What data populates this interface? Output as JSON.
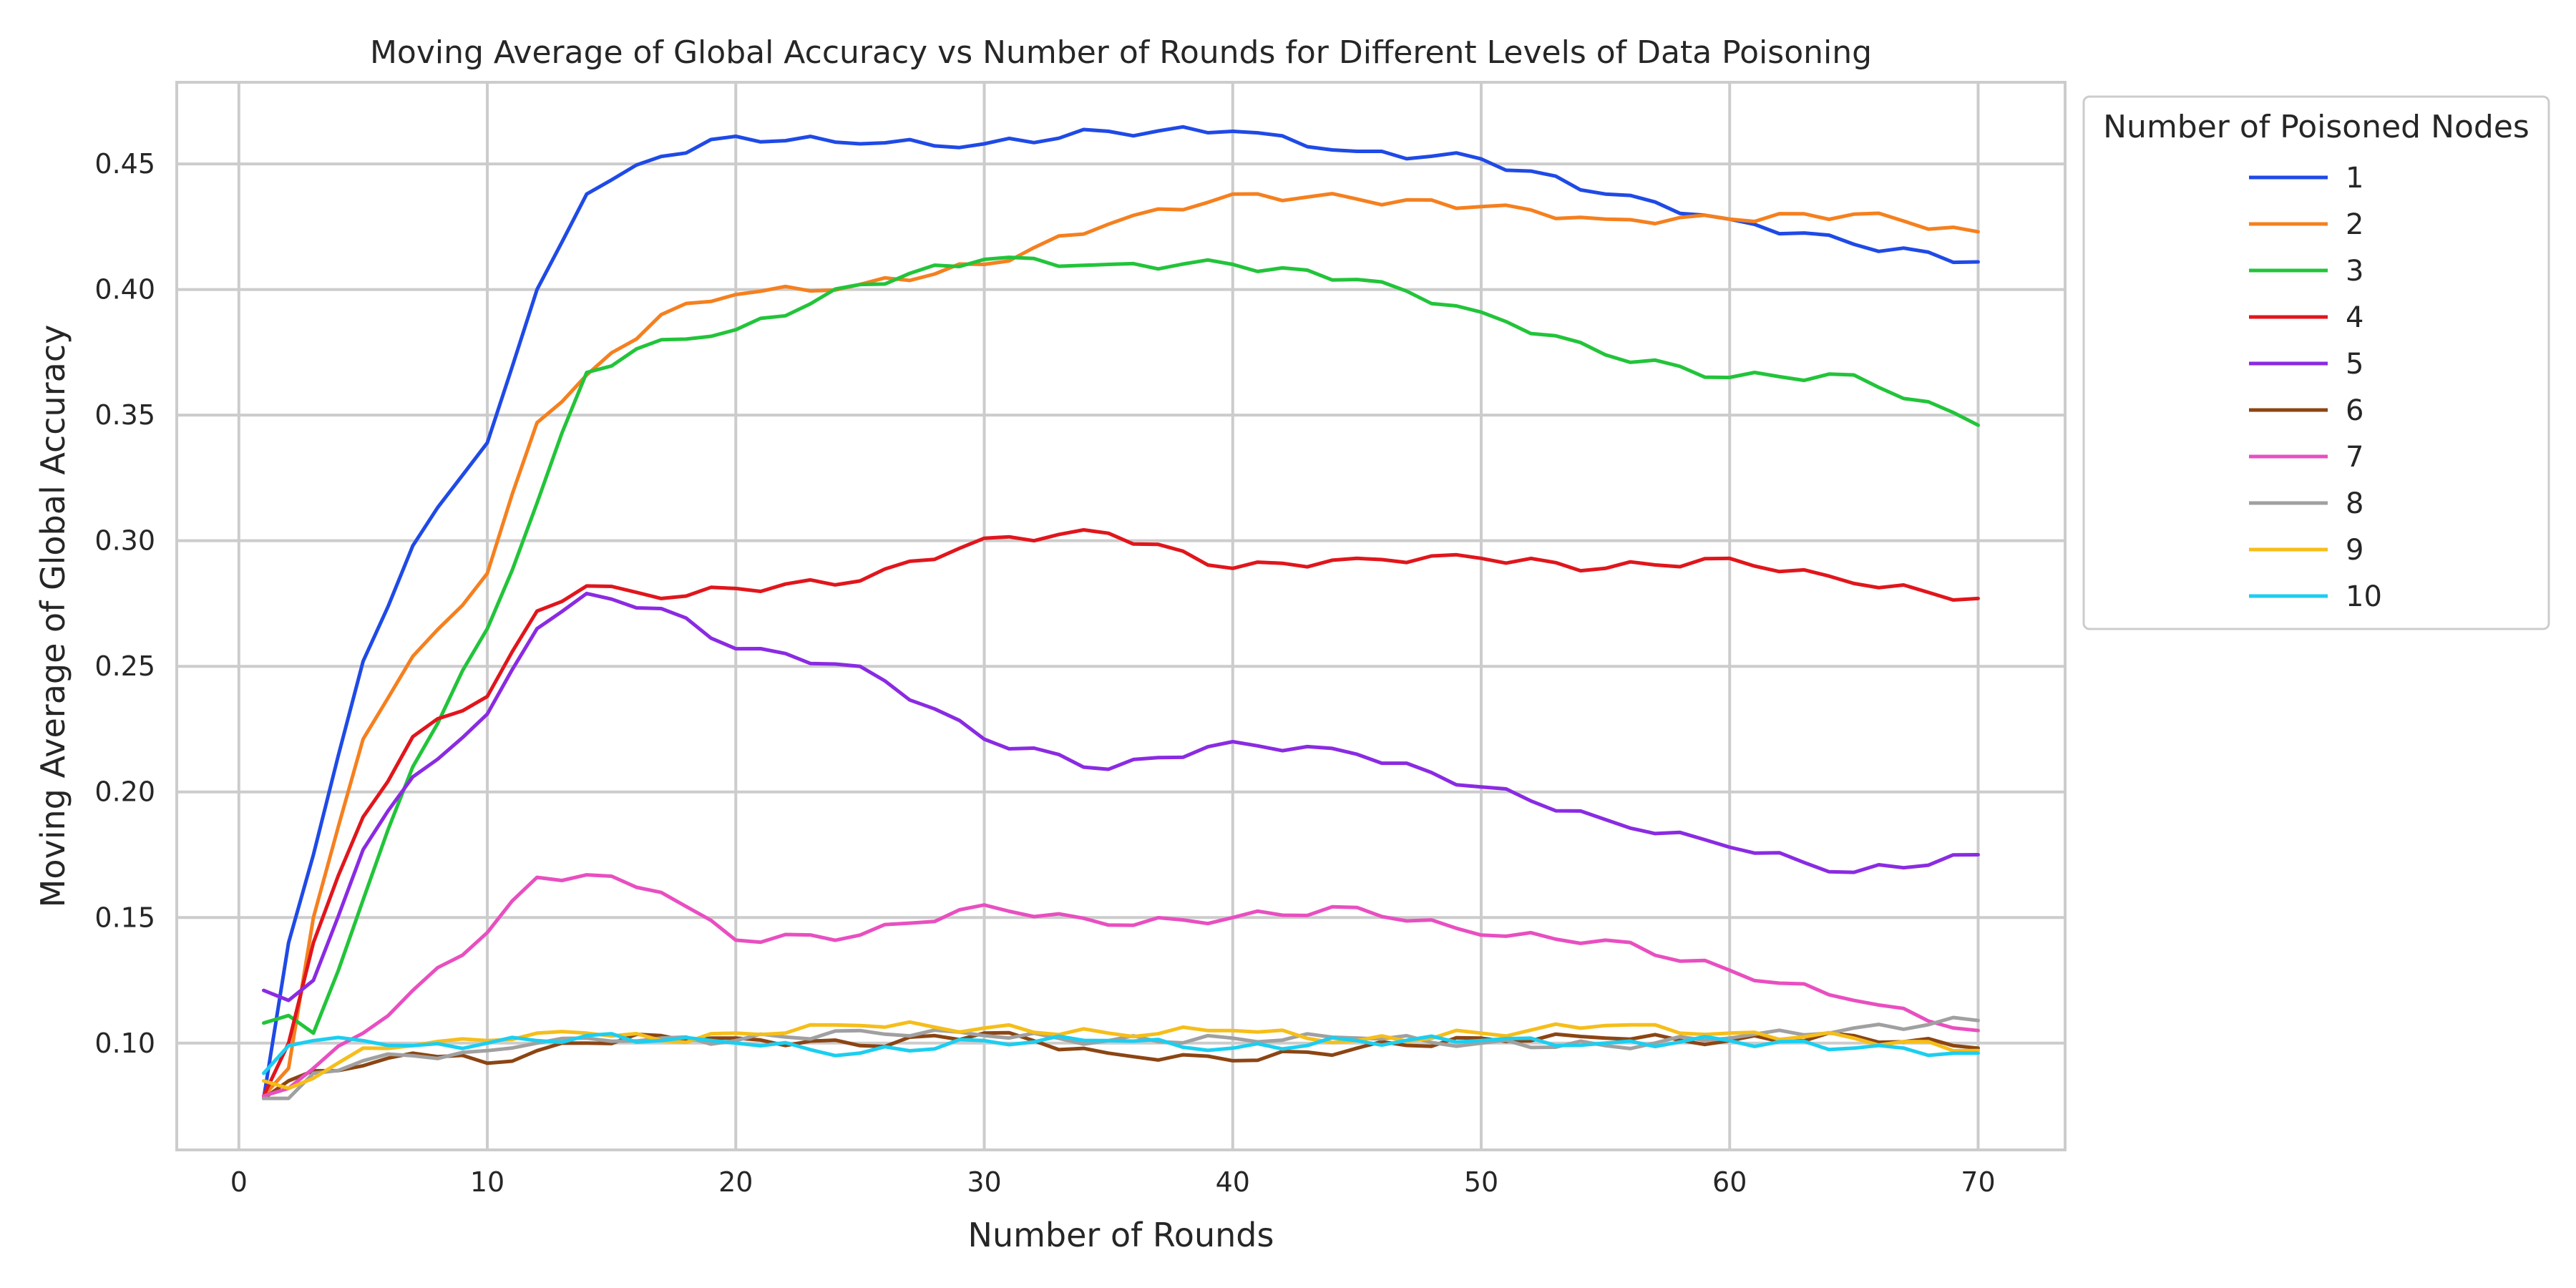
{
  "chart_data": {
    "type": "line",
    "title": "Moving Average of Global Accuracy vs Number of Rounds for Different Levels of Data Poisoning",
    "xlabel": "Number of Rounds",
    "ylabel": "Moving Average of Global Accuracy",
    "xlim": [
      -2.5,
      73.5
    ],
    "ylim": [
      0.0575,
      0.4825
    ],
    "xticks": [
      0,
      10,
      20,
      30,
      40,
      50,
      60,
      70
    ],
    "yticks": [
      0.1,
      0.15,
      0.2,
      0.25,
      0.3,
      0.35,
      0.4,
      0.45
    ],
    "xtick_labels": [
      "0",
      "10",
      "20",
      "30",
      "40",
      "50",
      "60",
      "70"
    ],
    "ytick_labels": [
      "0.10",
      "0.15",
      "0.20",
      "0.25",
      "0.30",
      "0.35",
      "0.40",
      "0.45"
    ],
    "grid": true,
    "legend_title": "Number of Poisoned Nodes",
    "legend_position": "outside-right-top",
    "x_anchors": [
      1,
      2,
      3,
      5,
      7,
      10,
      12,
      14,
      17,
      20,
      25,
      30,
      35,
      40,
      45,
      50,
      55,
      60,
      65,
      70
    ],
    "series": [
      {
        "name": "1",
        "color": "#1f4ae6",
        "values": [
          0.078,
          0.14,
          0.175,
          0.252,
          0.298,
          0.339,
          0.4,
          0.438,
          0.453,
          0.461,
          0.458,
          0.458,
          0.463,
          0.463,
          0.455,
          0.452,
          0.438,
          0.428,
          0.418,
          0.411
        ]
      },
      {
        "name": "2",
        "color": "#f5801f",
        "values": [
          0.079,
          0.09,
          0.15,
          0.221,
          0.254,
          0.287,
          0.347,
          0.366,
          0.39,
          0.398,
          0.402,
          0.41,
          0.426,
          0.438,
          0.436,
          0.433,
          0.428,
          0.428,
          0.43,
          0.423
        ]
      },
      {
        "name": "3",
        "color": "#22c43a",
        "values": [
          0.108,
          0.111,
          0.104,
          0.157,
          0.21,
          0.265,
          0.315,
          0.367,
          0.38,
          0.384,
          0.402,
          0.412,
          0.41,
          0.41,
          0.404,
          0.391,
          0.374,
          0.365,
          0.366,
          0.346
        ]
      },
      {
        "name": "4",
        "color": "#e0161c",
        "values": [
          0.079,
          0.1,
          0.14,
          0.19,
          0.222,
          0.238,
          0.272,
          0.282,
          0.277,
          0.281,
          0.284,
          0.301,
          0.303,
          0.289,
          0.293,
          0.293,
          0.289,
          0.293,
          0.283,
          0.277
        ]
      },
      {
        "name": "5",
        "color": "#8a2be2",
        "values": [
          0.121,
          0.117,
          0.125,
          0.177,
          0.206,
          0.231,
          0.265,
          0.279,
          0.273,
          0.257,
          0.25,
          0.221,
          0.209,
          0.22,
          0.215,
          0.202,
          0.189,
          0.178,
          0.168,
          0.175
        ]
      },
      {
        "name": "6",
        "color": "#8b4513",
        "values": [
          0.078,
          0.085,
          0.089,
          0.091,
          0.096,
          0.092,
          0.097,
          0.1,
          0.103,
          0.102,
          0.099,
          0.104,
          0.096,
          0.093,
          0.098,
          0.102,
          0.102,
          0.101,
          0.103,
          0.098
        ]
      },
      {
        "name": "7",
        "color": "#e84fc0",
        "values": [
          0.079,
          0.082,
          0.09,
          0.104,
          0.121,
          0.144,
          0.166,
          0.167,
          0.16,
          0.141,
          0.143,
          0.155,
          0.147,
          0.15,
          0.154,
          0.143,
          0.141,
          0.129,
          0.117,
          0.105
        ]
      },
      {
        "name": "8",
        "color": "#a0a0a0",
        "values": [
          0.078,
          0.078,
          0.088,
          0.093,
          0.095,
          0.097,
          0.1,
          0.102,
          0.102,
          0.101,
          0.105,
          0.103,
          0.101,
          0.102,
          0.102,
          0.1,
          0.099,
          0.102,
          0.106,
          0.109
        ]
      },
      {
        "name": "9",
        "color": "#f5be1a",
        "values": [
          0.085,
          0.082,
          0.086,
          0.098,
          0.099,
          0.101,
          0.104,
          0.104,
          0.101,
          0.104,
          0.107,
          0.106,
          0.104,
          0.105,
          0.101,
          0.104,
          0.107,
          0.104,
          0.102,
          0.097
        ]
      },
      {
        "name": "10",
        "color": "#1ccef0",
        "values": [
          0.088,
          0.099,
          0.101,
          0.101,
          0.099,
          0.1,
          0.101,
          0.103,
          0.101,
          0.1,
          0.096,
          0.101,
          0.101,
          0.098,
          0.101,
          0.101,
          0.1,
          0.101,
          0.098,
          0.096
        ]
      }
    ]
  }
}
